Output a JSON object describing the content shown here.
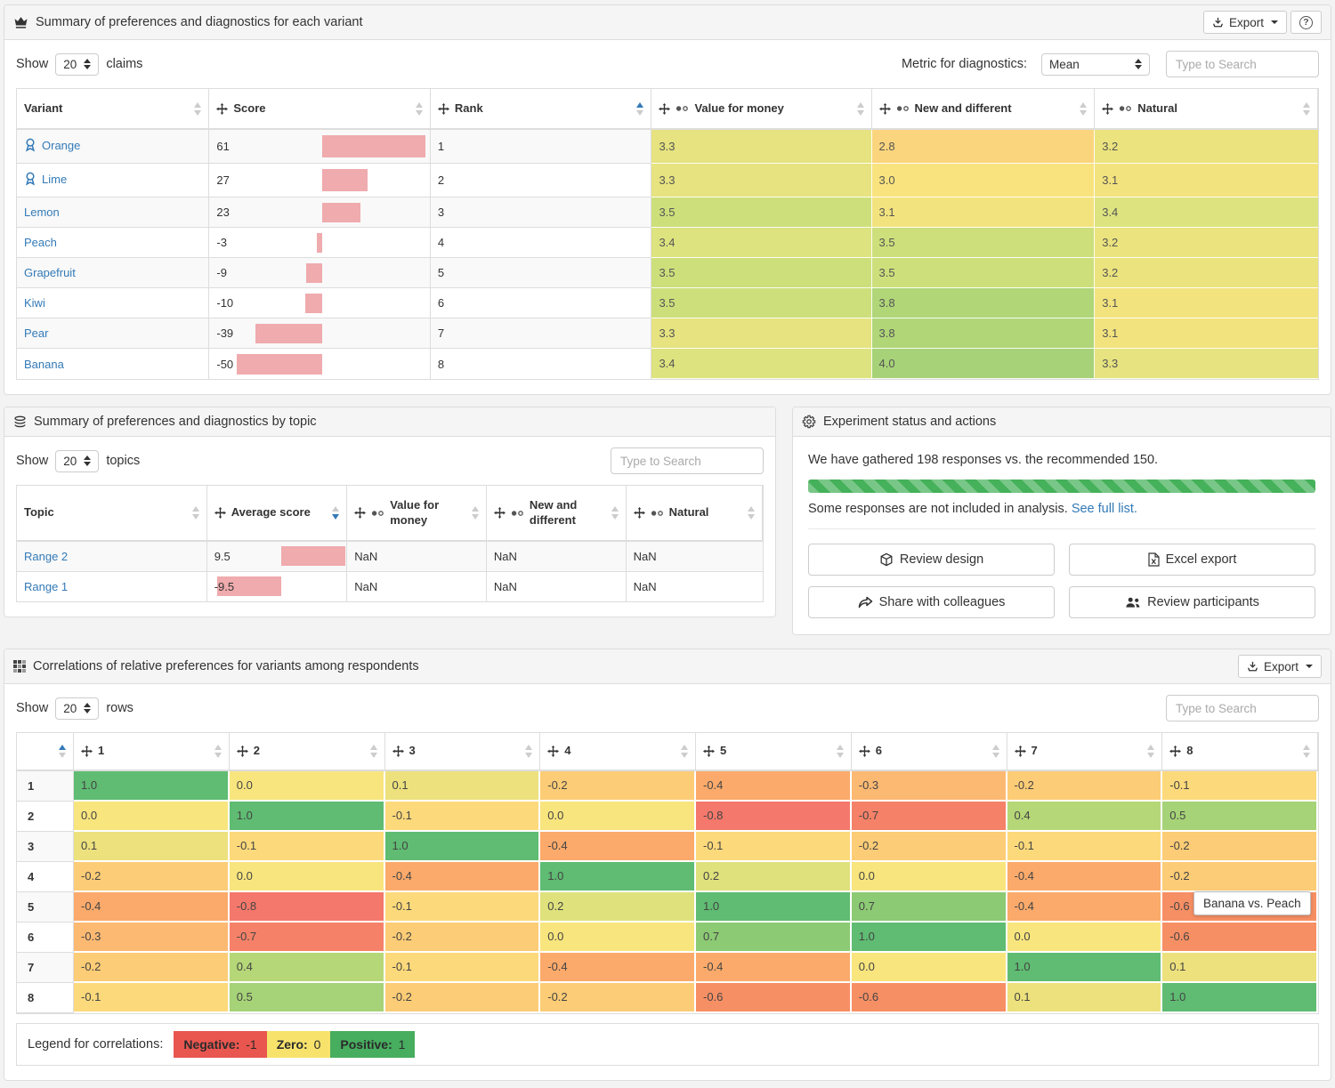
{
  "panel_variants": {
    "title": "Summary of preferences and diagnostics for each variant",
    "export_label": "Export",
    "show_label": "Show",
    "show_value": "20",
    "show_suffix": "claims",
    "metric_label": "Metric for diagnostics:",
    "metric_value": "Mean",
    "search_placeholder": "Type to Search",
    "columns": [
      {
        "label": "Variant",
        "move": false,
        "metric": false,
        "sort": "none",
        "width": "14.8%"
      },
      {
        "label": "Score",
        "move": true,
        "metric": false,
        "sort": "none",
        "width": "17.0%"
      },
      {
        "label": "Rank",
        "move": true,
        "metric": false,
        "sort": "asc",
        "width": "17.0%"
      },
      {
        "label": "Value for money",
        "move": true,
        "metric": true,
        "sort": "none",
        "width": "16.9%"
      },
      {
        "label": "New and different",
        "move": true,
        "metric": true,
        "sort": "none",
        "width": "17.15%"
      },
      {
        "label": "Natural",
        "move": true,
        "metric": true,
        "sort": "none",
        "width": "17.15%"
      }
    ],
    "rows": [
      {
        "name": "Orange",
        "medal": true,
        "score": 61,
        "rank": "1",
        "vfm": "3.3",
        "nad": "2.8",
        "natural": "3.2"
      },
      {
        "name": "Lime",
        "medal": true,
        "score": 27,
        "rank": "2",
        "vfm": "3.3",
        "nad": "3.0",
        "natural": "3.1"
      },
      {
        "name": "Lemon",
        "medal": false,
        "score": 23,
        "rank": "3",
        "vfm": "3.5",
        "nad": "3.1",
        "natural": "3.4"
      },
      {
        "name": "Peach",
        "medal": false,
        "score": -3,
        "rank": "4",
        "vfm": "3.4",
        "nad": "3.5",
        "natural": "3.2"
      },
      {
        "name": "Grapefruit",
        "medal": false,
        "score": -9,
        "rank": "5",
        "vfm": "3.5",
        "nad": "3.5",
        "natural": "3.2"
      },
      {
        "name": "Kiwi",
        "medal": false,
        "score": -10,
        "rank": "6",
        "vfm": "3.5",
        "nad": "3.8",
        "natural": "3.1"
      },
      {
        "name": "Pear",
        "medal": false,
        "score": -39,
        "rank": "7",
        "vfm": "3.3",
        "nad": "3.8",
        "natural": "3.1"
      },
      {
        "name": "Banana",
        "medal": false,
        "score": -50,
        "rank": "8",
        "vfm": "3.4",
        "nad": "4.0",
        "natural": "3.3"
      }
    ]
  },
  "panel_topics": {
    "title": "Summary of preferences and diagnostics by topic",
    "show_label": "Show",
    "show_value": "20",
    "show_suffix": "topics",
    "search_placeholder": "Type to Search",
    "columns": [
      {
        "label": "Topic",
        "move": false,
        "metric": false,
        "sort": "none",
        "width": "25.5%"
      },
      {
        "label": "Average score",
        "move": true,
        "metric": false,
        "sort": "desc",
        "width": "18.8%"
      },
      {
        "label": "Value for money",
        "move": true,
        "metric": true,
        "sort": "none",
        "width": "18.7%"
      },
      {
        "label": "New and different",
        "move": true,
        "metric": true,
        "sort": "none",
        "width": "18.7%"
      },
      {
        "label": "Natural",
        "move": true,
        "metric": true,
        "sort": "none",
        "width": "18.3%"
      }
    ],
    "rows": [
      {
        "topic": "Range 2",
        "avg": 9.5,
        "avg_text": "9.5",
        "vfm": "NaN",
        "nad": "NaN",
        "natural": "NaN"
      },
      {
        "topic": "Range 1",
        "avg": -9.5,
        "avg_text": "-9.5",
        "vfm": "NaN",
        "nad": "NaN",
        "natural": "NaN"
      }
    ]
  },
  "panel_status": {
    "title": "Experiment status and actions",
    "message": "We have gathered 198 responses vs. the recommended 150.",
    "progress_percent": 100,
    "note": "Some responses are not included in analysis.",
    "note_link": "See full list.",
    "buttons": [
      {
        "label": "Review design",
        "icon": "cube-icon"
      },
      {
        "label": "Excel export",
        "icon": "excel-icon"
      },
      {
        "label": "Share with colleagues",
        "icon": "share-icon"
      },
      {
        "label": "Review participants",
        "icon": "people-icon"
      }
    ]
  },
  "panel_correlations": {
    "title": "Correlations of relative preferences for variants among respondents",
    "export_label": "Export",
    "show_label": "Show",
    "show_value": "20",
    "show_suffix": "rows",
    "search_placeholder": "Type to Search",
    "col_labels": [
      "1",
      "2",
      "3",
      "4",
      "5",
      "6",
      "7",
      "8"
    ],
    "matrix": [
      {
        "label": "1",
        "cells": [
          "1.0",
          "0.0",
          "0.1",
          "-0.2",
          "-0.4",
          "-0.3",
          "-0.2",
          "-0.1"
        ]
      },
      {
        "label": "2",
        "cells": [
          "0.0",
          "1.0",
          "-0.1",
          "0.0",
          "-0.8",
          "-0.7",
          "0.4",
          "0.5"
        ]
      },
      {
        "label": "3",
        "cells": [
          "0.1",
          "-0.1",
          "1.0",
          "-0.4",
          "-0.1",
          "-0.2",
          "-0.1",
          "-0.2"
        ]
      },
      {
        "label": "4",
        "cells": [
          "-0.2",
          "0.0",
          "-0.4",
          "1.0",
          "0.2",
          "0.0",
          "-0.4",
          "-0.2"
        ]
      },
      {
        "label": "5",
        "cells": [
          "-0.4",
          "-0.8",
          "-0.1",
          "0.2",
          "1.0",
          "0.7",
          "-0.4",
          "-0.6"
        ]
      },
      {
        "label": "6",
        "cells": [
          "-0.3",
          "-0.7",
          "-0.2",
          "0.0",
          "0.7",
          "1.0",
          "0.0",
          "-0.6"
        ]
      },
      {
        "label": "7",
        "cells": [
          "-0.2",
          "0.4",
          "-0.1",
          "-0.4",
          "-0.4",
          "0.0",
          "1.0",
          "0.1"
        ]
      },
      {
        "label": "8",
        "cells": [
          "-0.1",
          "0.5",
          "-0.2",
          "-0.2",
          "-0.6",
          "-0.6",
          "0.1",
          "1.0"
        ]
      }
    ],
    "tooltip_text": "Banana vs. Peach",
    "legend_label": "Legend for correlations:",
    "legend_items": [
      {
        "label": "Negative:",
        "value": "-1",
        "color": "#e9564f"
      },
      {
        "label": "Zero:",
        "value": "0",
        "color": "#f7e26c"
      },
      {
        "label": "Positive:",
        "value": "1",
        "color": "#47ad5f"
      }
    ]
  },
  "colors": {
    "accent_blue": "#337ab7",
    "score_bar": "#efabad",
    "progress_green": "#45b15a",
    "diag_scale": {
      "2.8": "#fbd57d",
      "3.0": "#f9e37e",
      "3.1": "#f3e37e",
      "3.2": "#ebe37e",
      "3.3": "#e6e380",
      "3.4": "#dde37f",
      "3.5": "#cddf7b",
      "3.8": "#b0d678",
      "4.0": "#a7d278"
    },
    "corr_scale": {
      "1.0": "#5fbc72",
      "0.7": "#8cca74",
      "0.5": "#a6d377",
      "0.4": "#b5d778",
      "0.2": "#dfe17c",
      "0.1": "#ece17d",
      "0.0": "#f8e57e",
      "-0.1": "#fcd97b",
      "-0.2": "#fccc76",
      "-0.3": "#fcb972",
      "-0.4": "#fbaa6b",
      "-0.6": "#f78f64",
      "-0.7": "#f58168",
      "-0.8": "#f4786b"
    }
  }
}
